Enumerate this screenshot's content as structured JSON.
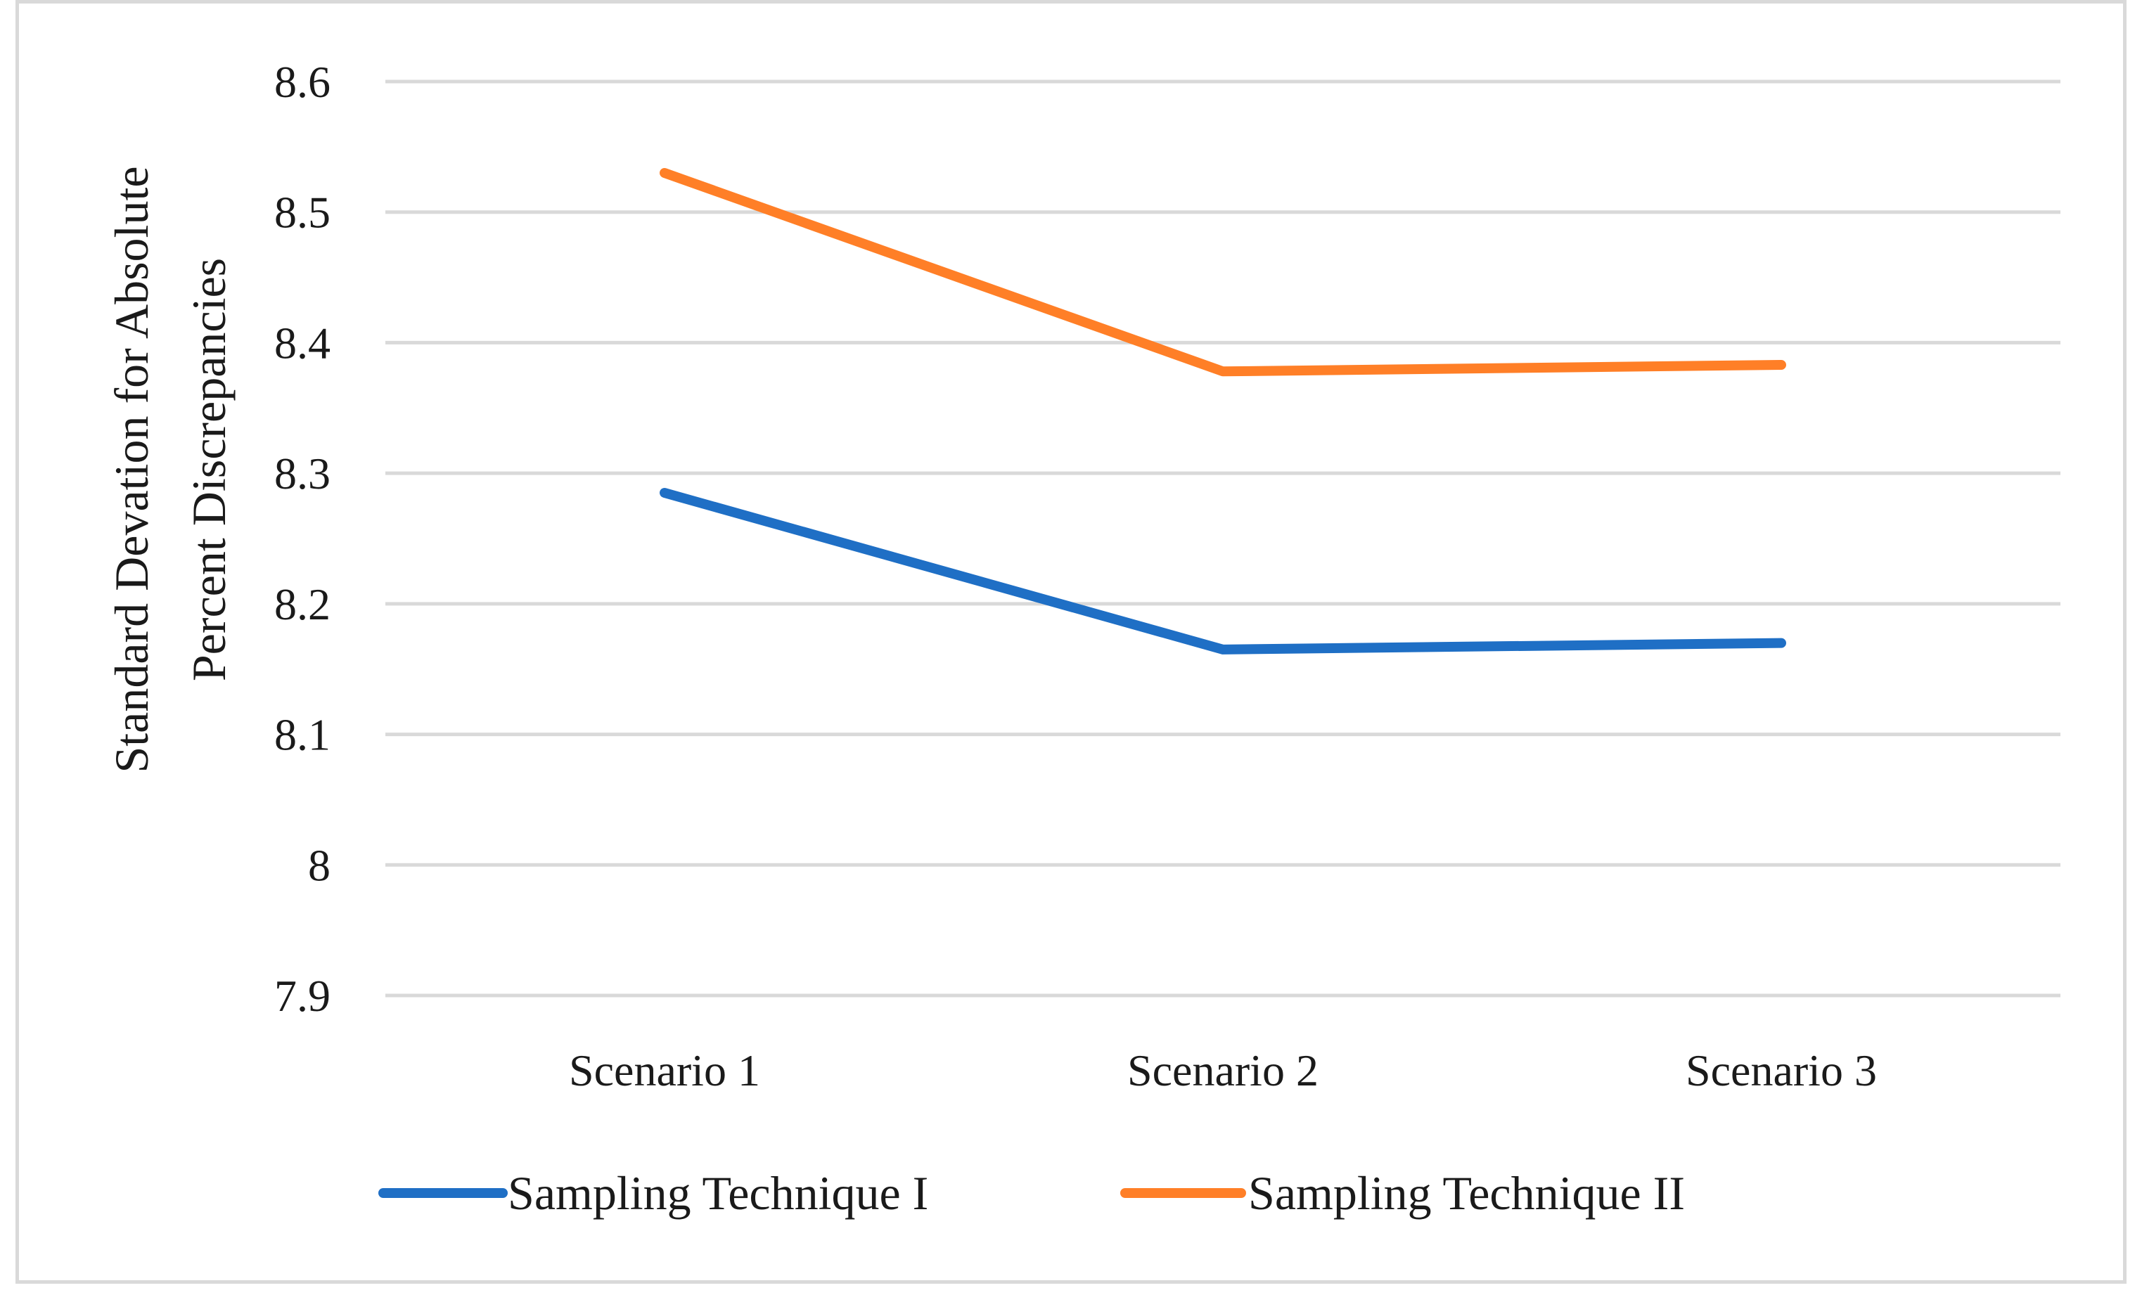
{
  "chart_data": {
    "type": "line",
    "title": "",
    "xlabel": "",
    "ylabel": "Standard Devation for Absolute Percent  Discrepancies",
    "ylabel_lines": [
      "Standard Devation for Absolute",
      "Percent  Discrepancies"
    ],
    "categories": [
      "Scenario 1",
      "Scenario 2",
      "Scenario 3"
    ],
    "ylim": [
      7.9,
      8.6
    ],
    "yticks": [
      7.9,
      8,
      8.1,
      8.2,
      8.3,
      8.4,
      8.5,
      8.6
    ],
    "ytick_labels": [
      "7.9",
      "8",
      "8.1",
      "8.2",
      "8.3",
      "8.4",
      "8.5",
      "8.6"
    ],
    "grid": true,
    "legend_position": "bottom",
    "series": [
      {
        "name": "Sampling Technique I",
        "values": [
          8.285,
          8.165,
          8.17
        ],
        "color": "#1f6fc5"
      },
      {
        "name": "Sampling Technique II",
        "values": [
          8.53,
          8.378,
          8.383
        ],
        "color": "#ff7f27"
      }
    ]
  }
}
